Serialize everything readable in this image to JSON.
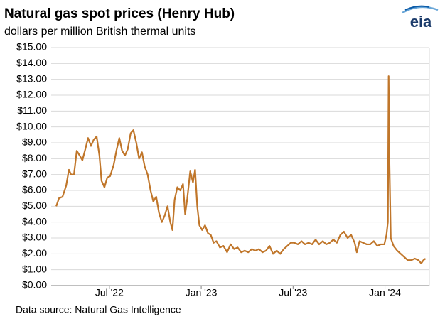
{
  "chart_data": {
    "type": "line",
    "title": "Natural gas spot prices (Henry Hub)",
    "subtitle": "dollars per million British thermal units",
    "source": "Data source: Natural Gas Intelligence",
    "logo": "eia",
    "color": "#c0762a",
    "grid": true,
    "x": [
      2.53,
      2.71,
      2.94,
      3.18,
      3.36,
      3.5,
      3.69,
      3.87,
      4.06,
      4.24,
      4.43,
      4.61,
      4.8,
      4.98,
      5.17,
      5.35,
      5.49,
      5.68,
      5.86,
      6.05,
      6.28,
      6.46,
      6.65,
      6.83,
      7.02,
      7.2,
      7.39,
      7.57,
      7.76,
      7.94,
      8.13,
      8.31,
      8.5,
      8.69,
      8.87,
      9.06,
      9.24,
      9.43,
      9.61,
      9.8,
      9.98,
      10.12,
      10.26,
      10.44,
      10.63,
      10.81,
      10.95,
      11.09,
      11.28,
      11.46,
      11.6,
      11.74,
      11.88,
      12.06,
      12.25,
      12.44,
      12.62,
      12.81,
      12.99,
      13.22,
      13.45,
      13.69,
      13.92,
      14.15,
      14.38,
      14.61,
      14.84,
      15.07,
      15.31,
      15.54,
      15.77,
      16.0,
      16.23,
      16.46,
      16.69,
      16.93,
      17.16,
      17.39,
      17.62,
      17.85,
      18.08,
      18.31,
      18.55,
      18.78,
      19.01,
      19.24,
      19.47,
      19.7,
      19.94,
      20.17,
      20.4,
      20.63,
      20.86,
      21.09,
      21.32,
      21.56,
      21.79,
      22.02,
      22.16,
      22.34,
      22.57,
      22.81,
      23.04,
      23.27,
      23.5,
      23.73,
      23.96,
      24.1,
      24.19,
      24.24,
      24.29,
      24.38,
      24.56,
      24.8,
      25.03,
      25.26,
      25.49,
      25.72,
      25.95,
      26.19,
      26.37,
      26.51,
      26.65
    ],
    "values": [
      5.0,
      5.5,
      5.6,
      6.3,
      7.3,
      7.0,
      7.0,
      8.5,
      8.2,
      7.9,
      8.6,
      9.3,
      8.8,
      9.2,
      9.4,
      8.2,
      6.6,
      6.2,
      6.8,
      6.9,
      7.6,
      8.5,
      9.3,
      8.5,
      8.2,
      8.6,
      9.6,
      9.8,
      9.0,
      8.0,
      8.4,
      7.5,
      7.0,
      6.0,
      5.3,
      5.6,
      4.6,
      4.0,
      4.4,
      5.0,
      4.0,
      3.5,
      5.4,
      6.2,
      6.0,
      6.4,
      4.5,
      5.5,
      7.2,
      6.5,
      7.3,
      5.0,
      3.8,
      3.5,
      3.8,
      3.3,
      3.2,
      2.7,
      2.8,
      2.4,
      2.5,
      2.1,
      2.6,
      2.3,
      2.4,
      2.1,
      2.2,
      2.1,
      2.3,
      2.2,
      2.3,
      2.1,
      2.2,
      2.5,
      2.0,
      2.2,
      2.0,
      2.3,
      2.5,
      2.7,
      2.7,
      2.6,
      2.8,
      2.6,
      2.7,
      2.6,
      2.9,
      2.6,
      2.8,
      2.6,
      2.7,
      2.9,
      2.7,
      3.2,
      3.4,
      3.0,
      3.2,
      2.7,
      2.1,
      2.8,
      2.7,
      2.6,
      2.6,
      2.8,
      2.5,
      2.6,
      2.6,
      3.2,
      4.0,
      13.2,
      8.0,
      3.0,
      2.5,
      2.2,
      2.0,
      1.8,
      1.6,
      1.6,
      1.7,
      1.6,
      1.4,
      1.6,
      1.7
    ],
    "xlim": [
      2.2,
      26.9
    ],
    "xticks": [
      {
        "value": 6,
        "label": "Jul '22"
      },
      {
        "value": 12,
        "label": "Jan '23"
      },
      {
        "value": 18,
        "label": "Jul '23"
      },
      {
        "value": 24,
        "label": "Jan '24"
      }
    ],
    "ylim": [
      0,
      15
    ],
    "yticks": [
      {
        "value": 0,
        "label": "$0.00"
      },
      {
        "value": 1,
        "label": "$1.00"
      },
      {
        "value": 2,
        "label": "$2.00"
      },
      {
        "value": 3,
        "label": "$3.00"
      },
      {
        "value": 4,
        "label": "$4.00"
      },
      {
        "value": 5,
        "label": "$5.00"
      },
      {
        "value": 6,
        "label": "$6.00"
      },
      {
        "value": 7,
        "label": "$7.00"
      },
      {
        "value": 8,
        "label": "$8.00"
      },
      {
        "value": 9,
        "label": "$9.00"
      },
      {
        "value": 10,
        "label": "$10.00"
      },
      {
        "value": 11,
        "label": "$11.00"
      },
      {
        "value": 12,
        "label": "$12.00"
      },
      {
        "value": 13,
        "label": "$13.00"
      },
      {
        "value": 14,
        "label": "$14.00"
      },
      {
        "value": 15,
        "label": "$15.00"
      }
    ]
  }
}
